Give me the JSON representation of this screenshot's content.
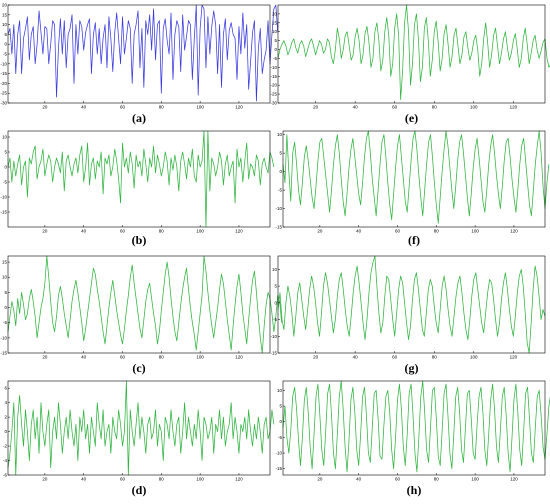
{
  "chart_data": [
    {
      "type": "line",
      "caption": "(a)",
      "color": "#3a3ae0",
      "xlim": [
        1,
        136
      ],
      "ylim": [
        -30,
        20
      ],
      "xticks": [
        20,
        40,
        60,
        80,
        100,
        120
      ],
      "yticks": [
        -30,
        -25,
        -20,
        -15,
        -10,
        -5,
        0,
        5,
        10,
        15,
        20
      ],
      "x_start": 1,
      "values": [
        5,
        8,
        -5,
        10,
        -15,
        5,
        12,
        -15,
        3,
        8,
        14,
        -8,
        5,
        9,
        -10,
        0,
        17,
        6,
        -5,
        9,
        8,
        -10,
        0,
        12,
        10,
        -27,
        -2,
        13,
        -5,
        12,
        -12,
        5,
        8,
        15,
        -20,
        10,
        -5,
        12,
        9,
        -3,
        6,
        10,
        13,
        -15,
        5,
        11,
        -5,
        8,
        -10,
        3,
        10,
        -12,
        14,
        3,
        -14,
        6,
        16,
        3,
        -10,
        14,
        -5,
        3,
        12,
        8,
        -20,
        5,
        10,
        17,
        -12,
        8,
        -22,
        12,
        5,
        15,
        -3,
        18,
        -8,
        10,
        12,
        -25,
        8,
        13,
        2,
        -5,
        16,
        -18,
        5,
        12,
        9,
        -14,
        15,
        -3,
        4,
        12,
        10,
        -18,
        3,
        20,
        -26,
        8,
        25,
        18,
        -12,
        14,
        -5,
        9,
        17,
        10,
        -15,
        10,
        -22,
        5,
        13,
        -8,
        7,
        11,
        5,
        3,
        -18,
        9,
        -5,
        16,
        -2,
        10,
        -23,
        -9,
        6,
        12,
        -29,
        -2,
        8,
        -15,
        -8,
        -3,
        12,
        -10,
        5,
        18,
        20,
        6
      ]
    },
    {
      "type": "line",
      "caption": "(b)",
      "color": "#2fb43f",
      "xlim": [
        1,
        136
      ],
      "ylim": [
        -20,
        12
      ],
      "xticks": [
        20,
        40,
        60,
        80,
        100,
        120
      ],
      "yticks": [
        -15,
        -10,
        -5,
        0,
        5,
        10
      ],
      "x_start": 1,
      "values": [
        0,
        3,
        -5,
        2,
        -3,
        1,
        4,
        -6,
        0,
        2,
        -10,
        3,
        1,
        5,
        7,
        -4,
        0,
        2,
        6,
        -3,
        1,
        4,
        2,
        -5,
        0,
        3,
        1,
        -2,
        5,
        -8,
        2,
        4,
        0,
        -3,
        1,
        3,
        -2,
        4,
        7,
        -5,
        0,
        8,
        -6,
        1,
        3,
        -4,
        2,
        0,
        5,
        -9,
        3,
        1,
        4,
        -3,
        0,
        6,
        2,
        -4,
        -12,
        8,
        0,
        3,
        -2,
        5,
        1,
        -7,
        4,
        0,
        2,
        -3,
        6,
        1,
        -5,
        3,
        0,
        7,
        -2,
        4,
        1,
        -3,
        0,
        5,
        2,
        -6,
        3,
        -1,
        4,
        0,
        -8,
        2,
        5,
        1,
        -4,
        3,
        0,
        6,
        -3,
        -5,
        4,
        0,
        2,
        15,
        -20,
        14,
        -8,
        3,
        1,
        -3,
        0,
        5,
        2,
        -6,
        1,
        4,
        -3,
        0,
        2,
        -12,
        6,
        0,
        3,
        -5,
        2,
        8,
        -4,
        1,
        0,
        -3,
        4,
        2,
        -6,
        1,
        3,
        0,
        -2,
        5,
        3,
        0
      ]
    },
    {
      "type": "line",
      "caption": "(c)",
      "color": "#2fb43f",
      "xlim": [
        1,
        136
      ],
      "ylim": [
        -15,
        17
      ],
      "xticks": [
        20,
        40,
        60,
        80,
        100,
        120
      ],
      "yticks": [
        -15,
        -10,
        -5,
        0,
        5,
        10,
        15
      ],
      "x_start": 1,
      "values": [
        -8,
        -3,
        2,
        -1,
        -6,
        3,
        -2,
        5,
        1,
        -4,
        -2,
        3,
        6,
        2,
        -3,
        -10,
        -5,
        0,
        3,
        8,
        17,
        10,
        2,
        -5,
        -8,
        -3,
        4,
        7,
        3,
        -2,
        -6,
        -10,
        -4,
        2,
        6,
        9,
        5,
        0,
        -5,
        -11,
        -7,
        -2,
        3,
        8,
        13,
        11,
        6,
        2,
        -3,
        -8,
        -12,
        -6,
        0,
        5,
        9,
        4,
        -1,
        -5,
        -9,
        -12,
        -7,
        -1,
        4,
        10,
        14,
        8,
        3,
        -2,
        -7,
        -10,
        -4,
        2,
        6,
        8,
        3,
        -2,
        -6,
        -12,
        -8,
        -1,
        5,
        11,
        15,
        10,
        3,
        -3,
        -8,
        -11,
        -5,
        1,
        6,
        10,
        13,
        6,
        0,
        -5,
        -9,
        -14,
        -8,
        -2,
        4,
        18,
        12,
        5,
        -1,
        -6,
        -10,
        -5,
        0,
        6,
        11,
        8,
        2,
        -4,
        -9,
        -14,
        -6,
        1,
        7,
        11,
        5,
        -2,
        -7,
        -12,
        -4,
        3,
        9,
        12,
        5,
        -3,
        -10,
        -15,
        -6,
        1,
        5,
        3,
        -2,
        -8,
        -3,
        4,
        2,
        -5
      ]
    },
    {
      "type": "line",
      "caption": "(d)",
      "color": "#2fb43f",
      "xlim": [
        1,
        136
      ],
      "ylim": [
        -6,
        7
      ],
      "xticks": [
        20,
        40,
        60,
        80,
        100,
        120
      ],
      "yticks": [
        -6,
        -4,
        -2,
        0,
        2,
        4,
        6
      ],
      "x_start": 1,
      "values": [
        -5,
        -3,
        0,
        4,
        -6,
        2,
        5,
        1,
        -2,
        3,
        0,
        -4,
        1,
        3,
        -1,
        2,
        -3,
        4,
        0,
        -2,
        1,
        3,
        -5,
        0,
        2,
        -1,
        4,
        1,
        -3,
        0,
        2,
        -1,
        3,
        0,
        -2,
        1,
        -4,
        2,
        0,
        3,
        -1,
        1,
        -3,
        2,
        0,
        -2,
        4,
        1,
        -1,
        3,
        -2,
        0,
        1,
        -3,
        2,
        0,
        -1,
        3,
        1,
        -2,
        0,
        8,
        -6,
        3,
        0,
        -2,
        1,
        4,
        -1,
        2,
        0,
        -3,
        1,
        2,
        -1,
        0,
        3,
        -2,
        1,
        0,
        -4,
        2,
        1,
        -1,
        3,
        0,
        -2,
        1,
        2,
        -3,
        0,
        4,
        -1,
        2,
        0,
        -2,
        1,
        -1,
        3,
        0,
        -4,
        2,
        1,
        -1,
        0,
        2,
        -3,
        1,
        0,
        3,
        -1,
        2,
        -2,
        0,
        1,
        4,
        -1,
        2,
        0,
        -3,
        1,
        0,
        2,
        -1,
        3,
        0,
        -2,
        1,
        -1,
        2,
        0,
        -3,
        1,
        2,
        -1,
        0,
        3,
        1
      ]
    },
    {
      "type": "line",
      "caption": "(e)",
      "color": "#2fb43f",
      "xlim": [
        1,
        136
      ],
      "ylim": [
        -30,
        25
      ],
      "xticks": [
        20,
        40,
        60,
        80,
        100,
        120
      ],
      "yticks": [
        -30,
        -25,
        -20,
        -15,
        -10,
        -5,
        0,
        5,
        10,
        15,
        20
      ],
      "x_start": 1,
      "values": [
        -5,
        0,
        3,
        5,
        2,
        -3,
        0,
        4,
        6,
        1,
        -2,
        3,
        5,
        2,
        -4,
        0,
        4,
        6,
        2,
        -3,
        1,
        5,
        3,
        -2,
        0,
        6,
        4,
        -4,
        -8,
        0,
        12,
        6,
        -5,
        0,
        8,
        10,
        2,
        -6,
        -3,
        7,
        12,
        5,
        -8,
        -3,
        9,
        13,
        4,
        -10,
        -5,
        10,
        15,
        5,
        -12,
        -6,
        10,
        18,
        8,
        -15,
        -8,
        12,
        20,
        8,
        -28,
        -12,
        15,
        28,
        10,
        -20,
        -8,
        14,
        20,
        6,
        -18,
        -10,
        12,
        18,
        5,
        -15,
        -6,
        10,
        16,
        4,
        -12,
        -5,
        9,
        14,
        3,
        -10,
        -4,
        8,
        12,
        2,
        -8,
        -3,
        7,
        10,
        1,
        -6,
        -2,
        5,
        8,
        0,
        -15,
        -8,
        6,
        15,
        4,
        -10,
        -3,
        8,
        12,
        2,
        -8,
        -2,
        6,
        10,
        1,
        -6,
        -2,
        5,
        9,
        0,
        -10,
        -5,
        6,
        12,
        3,
        -8,
        -2,
        5,
        8,
        0,
        -5,
        -1,
        4,
        6,
        -5,
        -10,
        -8,
        -3
      ]
    },
    {
      "type": "line",
      "caption": "(f)",
      "color": "#2fb43f",
      "xlim": [
        1,
        136
      ],
      "ylim": [
        -15,
        11
      ],
      "xticks": [
        20,
        40,
        60,
        80,
        100,
        120
      ],
      "yticks": [
        -15,
        -10,
        -5,
        0,
        5,
        10
      ],
      "x_start": 1,
      "values": [
        2,
        -3,
        10,
        0,
        -8,
        5,
        8,
        2,
        -5,
        -9,
        -3,
        4,
        7,
        3,
        -2,
        -7,
        -10,
        -4,
        3,
        8,
        9,
        4,
        -1,
        -6,
        -11,
        -5,
        2,
        7,
        10,
        5,
        -2,
        -8,
        -12,
        -6,
        1,
        6,
        9,
        4,
        -1,
        -6,
        -9,
        -3,
        4,
        9,
        11,
        5,
        -2,
        -7,
        -12,
        -5,
        2,
        8,
        10,
        4,
        -3,
        -9,
        -13,
        -6,
        1,
        7,
        10,
        4,
        -2,
        -8,
        -11,
        -4,
        3,
        9,
        12,
        6,
        -1,
        -7,
        -12,
        -5,
        2,
        8,
        10,
        4,
        -3,
        -9,
        -14,
        -7,
        0,
        6,
        11,
        7,
        1,
        -5,
        -10,
        -4,
        3,
        8,
        10,
        5,
        -1,
        -7,
        -12,
        -6,
        1,
        6,
        9,
        4,
        -2,
        -8,
        -11,
        -5,
        2,
        7,
        10,
        5,
        -1,
        -6,
        -10,
        -4,
        3,
        8,
        9,
        4,
        -2,
        -7,
        -11,
        -5,
        2,
        7,
        9,
        3,
        -3,
        -9,
        -12,
        -5,
        2,
        7,
        11,
        5,
        -4,
        -10,
        -3,
        2
      ]
    },
    {
      "type": "line",
      "caption": "(g)",
      "color": "#2fb43f",
      "xlim": [
        1,
        136
      ],
      "ylim": [
        -15,
        14
      ],
      "xticks": [
        20,
        40,
        60,
        80,
        100,
        120
      ],
      "yticks": [
        -15,
        -10,
        -5,
        0,
        5,
        10
      ],
      "x_start": 1,
      "values": [
        -2,
        3,
        -5,
        -8,
        0,
        5,
        2,
        -3,
        -10,
        -4,
        3,
        6,
        1,
        -4,
        -8,
        -2,
        4,
        8,
        5,
        0,
        -6,
        -10,
        -3,
        5,
        9,
        6,
        1,
        -4,
        -9,
        -5,
        2,
        7,
        9,
        4,
        -2,
        -7,
        -10,
        -4,
        3,
        8,
        11,
        6,
        0,
        -6,
        -11,
        -5,
        3,
        9,
        12,
        14,
        5,
        -3,
        -9,
        -6,
        2,
        8,
        7,
        1,
        -5,
        -10,
        -3,
        4,
        8,
        6,
        0,
        -6,
        -11,
        -7,
        1,
        7,
        9,
        4,
        -2,
        -8,
        -10,
        -3,
        4,
        7,
        5,
        -1,
        -6,
        -9,
        -2,
        5,
        8,
        4,
        -2,
        -7,
        -10,
        -4,
        2,
        6,
        8,
        3,
        -3,
        -8,
        -11,
        -5,
        2,
        7,
        9,
        4,
        -1,
        -6,
        -9,
        -3,
        3,
        7,
        6,
        1,
        -5,
        -10,
        -6,
        1,
        6,
        9,
        4,
        -2,
        -7,
        -10,
        -4,
        3,
        8,
        10,
        5,
        -3,
        -12,
        -15,
        -6,
        4,
        11,
        8,
        2,
        -5,
        -2,
        -4
      ]
    },
    {
      "type": "line",
      "caption": "(h)",
      "color": "#2fb43f",
      "xlim": [
        1,
        136
      ],
      "ylim": [
        -17,
        13
      ],
      "xticks": [
        20,
        40,
        60,
        80,
        100,
        120
      ],
      "yticks": [
        -15,
        -10,
        -5,
        0,
        5,
        10
      ],
      "x_start": 1,
      "values": [
        -2,
        5,
        -5,
        -10,
        -3,
        8,
        11,
        4,
        -6,
        -14,
        -5,
        7,
        11,
        3,
        -8,
        -15,
        -4,
        8,
        12,
        2,
        -9,
        -14,
        -3,
        9,
        12,
        2,
        -10,
        -15,
        -4,
        8,
        13,
        4,
        -8,
        -16,
        -6,
        7,
        11,
        3,
        -9,
        -14,
        -4,
        8,
        11,
        2,
        -10,
        -13,
        -2,
        9,
        10,
        1,
        -11,
        -12,
        -1,
        8,
        10,
        3,
        -9,
        -15,
        -5,
        7,
        12,
        4,
        -8,
        -14,
        -4,
        9,
        12,
        2,
        -10,
        -16,
        -5,
        8,
        13,
        3,
        -9,
        -13,
        -2,
        10,
        11,
        1,
        -11,
        -14,
        -3,
        9,
        12,
        2,
        -10,
        -15,
        -4,
        8,
        11,
        3,
        -9,
        -13,
        -2,
        9,
        10,
        1,
        -10,
        -12,
        -1,
        8,
        11,
        3,
        -9,
        -14,
        -4,
        7,
        12,
        4,
        -8,
        -13,
        -3,
        8,
        11,
        2,
        -10,
        -16,
        -5,
        7,
        12,
        3,
        -9,
        -14,
        -3,
        9,
        11,
        1,
        -10,
        -13,
        -2,
        8,
        10,
        2,
        -8,
        -12,
        -4,
        5,
        9,
        3
      ]
    }
  ]
}
